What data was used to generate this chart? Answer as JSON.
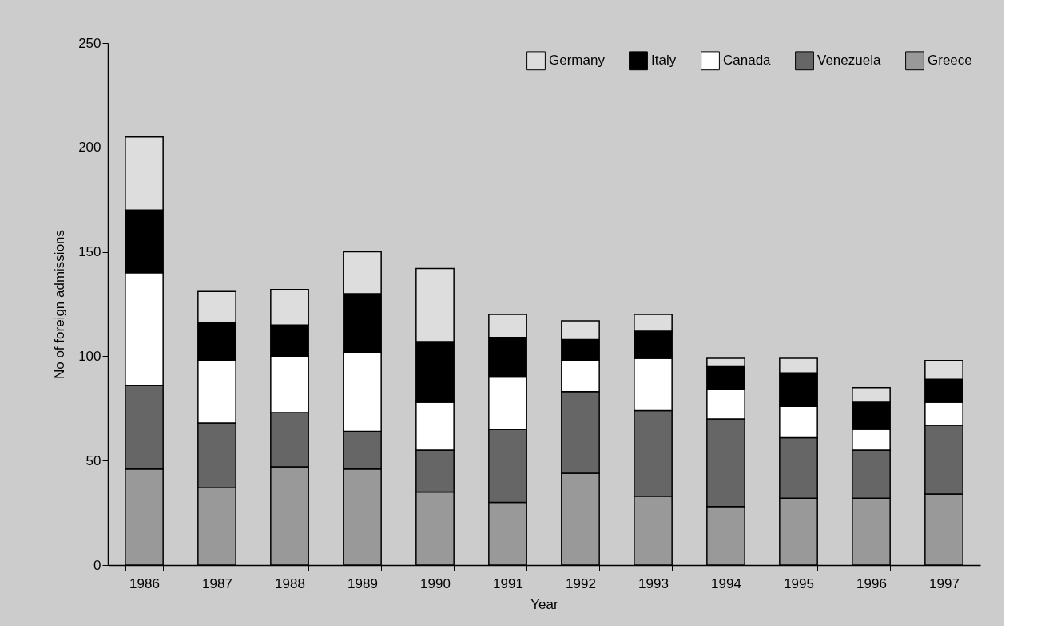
{
  "chart_data": {
    "type": "bar",
    "stacked": true,
    "xlabel": "Year",
    "ylabel": "No of foreign admissions",
    "categories": [
      "1986",
      "1987",
      "1988",
      "1989",
      "1990",
      "1991",
      "1992",
      "1993",
      "1994",
      "1995",
      "1996",
      "1997"
    ],
    "series": [
      {
        "name": "Greece",
        "color": "#999999",
        "values": [
          46,
          37,
          47,
          46,
          35,
          30,
          44,
          33,
          28,
          32,
          32,
          34
        ]
      },
      {
        "name": "Venezuela",
        "color": "#666666",
        "values": [
          40,
          31,
          26,
          18,
          20,
          35,
          39,
          41,
          42,
          29,
          23,
          33
        ]
      },
      {
        "name": "Canada",
        "color": "#ffffff",
        "values": [
          54,
          30,
          27,
          38,
          23,
          25,
          15,
          25,
          14,
          15,
          10,
          11
        ]
      },
      {
        "name": "Italy",
        "color": "#000000",
        "values": [
          30,
          18,
          15,
          28,
          29,
          19,
          10,
          13,
          11,
          16,
          13,
          11
        ]
      },
      {
        "name": "Germany",
        "color": "#dddddd",
        "values": [
          35,
          15,
          17,
          20,
          35,
          11,
          9,
          8,
          4,
          7,
          7,
          9
        ]
      }
    ],
    "ylim": [
      0,
      250
    ],
    "yticks": [
      0,
      50,
      100,
      150,
      200,
      250
    ],
    "grid": false,
    "legend": "top right"
  }
}
